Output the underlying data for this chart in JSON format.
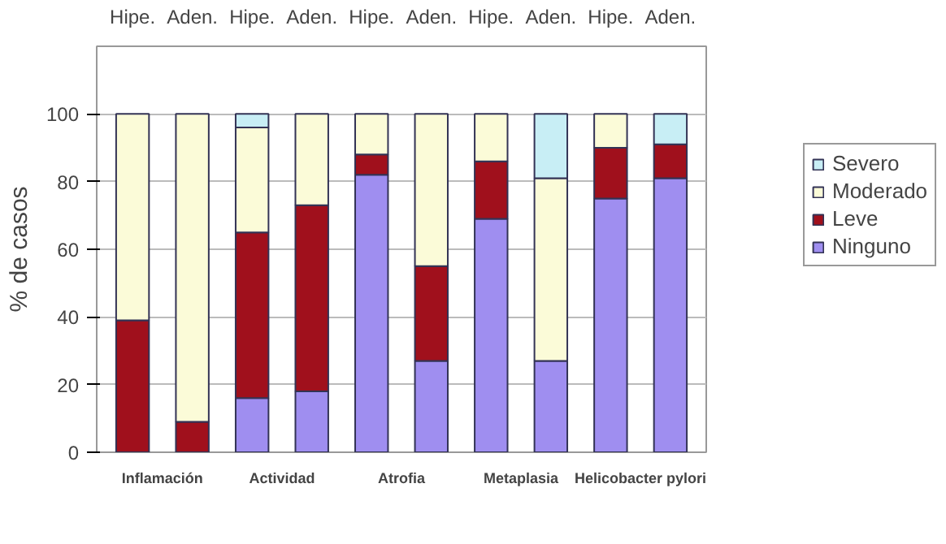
{
  "chart_data": {
    "type": "bar",
    "stacked": true,
    "ylabel": "% de casos",
    "categories": [
      "Hipe.",
      "Aden.",
      "Hipe.",
      "Aden.",
      "Hipe.",
      "Aden.",
      "Hipe.",
      "Aden.",
      "Hipe.",
      "Aden."
    ],
    "annotations": [
      "Inflamación",
      "Actividad",
      "Atrofia",
      "Metaplasia",
      "Helicobacter pylori"
    ],
    "series": [
      {
        "name": "Ninguno",
        "color": "#9f8ef0",
        "values": [
          0,
          0,
          16,
          18,
          82,
          27,
          69,
          27,
          75,
          81
        ]
      },
      {
        "name": "Leve",
        "color": "#a0101c",
        "values": [
          39,
          9,
          49,
          55,
          6,
          28,
          17,
          0,
          15,
          10
        ]
      },
      {
        "name": "Moderado",
        "color": "#fbfbd8",
        "values": [
          61,
          91,
          31,
          27,
          12,
          45,
          14,
          54,
          10,
          0
        ]
      },
      {
        "name": "Severo",
        "color": "#c8eef5",
        "values": [
          0,
          0,
          4,
          0,
          0,
          0,
          0,
          19,
          0,
          9
        ]
      }
    ],
    "ylim": [
      0,
      120
    ],
    "yticks": [
      0,
      20,
      40,
      60,
      80,
      100
    ],
    "grid": "y",
    "legend": "right"
  }
}
